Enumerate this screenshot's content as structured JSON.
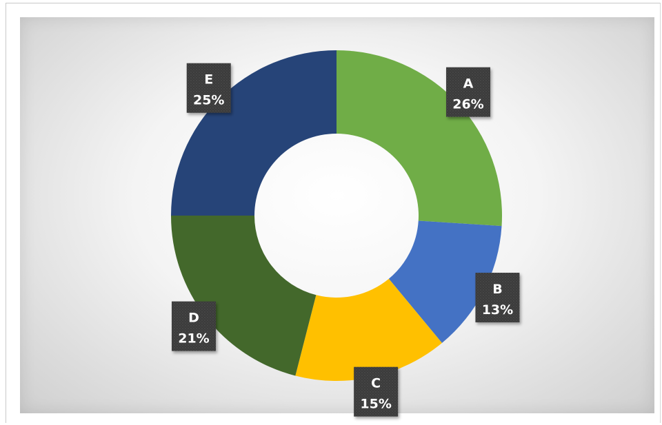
{
  "chart_data": {
    "type": "pie",
    "variant": "donut",
    "title": "",
    "categories": [
      "A",
      "B",
      "C",
      "D",
      "E"
    ],
    "values": [
      26,
      13,
      15,
      21,
      25
    ],
    "value_unit": "%",
    "data_labels": [
      "26%",
      "13%",
      "15%",
      "21%",
      "25%"
    ],
    "colors": [
      "#70AD47",
      "#4472C4",
      "#FFC000",
      "#43682B",
      "#264478"
    ],
    "label_box_color": "#3a3a3a",
    "start_angle_deg": 0,
    "direction": "clockwise",
    "legend": "none"
  }
}
